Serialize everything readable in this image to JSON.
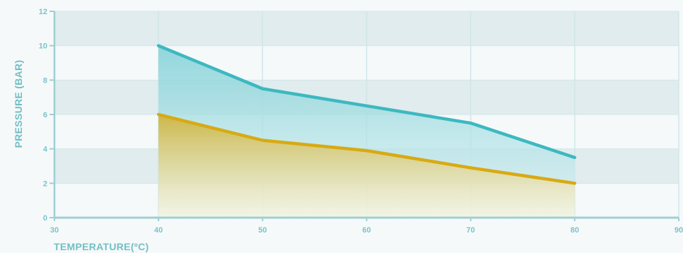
{
  "chart_data": {
    "type": "area",
    "title": "",
    "xlabel": "TEMPERATURE(ºC)",
    "ylabel": "PRESSURE (BAR)",
    "xlim": [
      30,
      90
    ],
    "ylim": [
      0,
      12
    ],
    "x_ticks": [
      30,
      40,
      50,
      60,
      70,
      80,
      90
    ],
    "y_ticks": [
      0,
      2,
      4,
      6,
      8,
      10,
      12
    ],
    "grid": true,
    "legend": "none",
    "series": [
      {
        "x": [
          40,
          50,
          60,
          70,
          80
        ],
        "values": [
          10,
          7.5,
          6.5,
          5.5,
          3.5
        ],
        "color": "#3db8c0"
      },
      {
        "x": [
          40,
          50,
          60,
          70,
          80
        ],
        "values": [
          6,
          4.5,
          3.9,
          2.9,
          2
        ],
        "color": "#d8aa12"
      }
    ],
    "colors": {
      "band": "#e0ecee",
      "grid": "#d2e6e8",
      "axis": "#9fcfd3"
    }
  }
}
